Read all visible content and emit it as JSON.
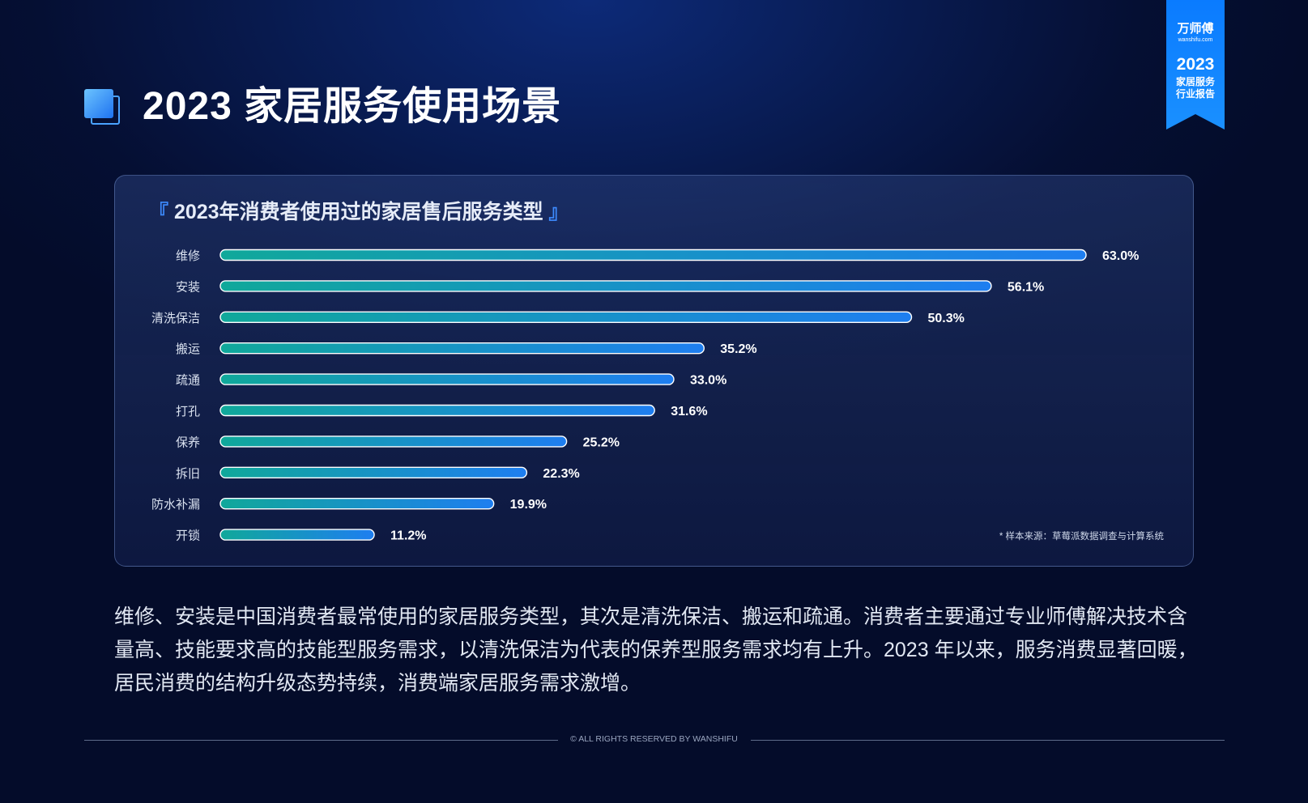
{
  "page": {
    "title": "2023 家居服务使用场景"
  },
  "ribbon": {
    "brand": "万师傅",
    "brand_url": "wanshifu.com",
    "year": "2023",
    "line1": "家居服务",
    "line2": "行业报告"
  },
  "chart_data": {
    "type": "bar",
    "orientation": "horizontal",
    "title": "2023年消费者使用过的家居售后服务类型",
    "title_bracket_open": "『",
    "title_bracket_close": "』",
    "categories": [
      "维修",
      "安装",
      "清洗保洁",
      "搬运",
      "疏通",
      "打孔",
      "保养",
      "拆旧",
      "防水补漏",
      "开锁"
    ],
    "values": [
      63.0,
      56.1,
      50.3,
      35.2,
      33.0,
      31.6,
      25.2,
      22.3,
      19.9,
      11.2
    ],
    "labels": [
      "63.0%",
      "56.1%",
      "50.3%",
      "35.2%",
      "33.0%",
      "31.6%",
      "25.2%",
      "22.3%",
      "19.9%",
      "11.2%"
    ],
    "unit": "%",
    "bar_gradient": [
      "#10a89a",
      "#1e7ef0"
    ],
    "source": "* 样本来源：草莓派数据调查与计算系统"
  },
  "summary": "维修、安装是中国消费者最常使用的家居服务类型，其次是清洗保洁、搬运和疏通。消费者主要通过专业师傅解决技术含量高、技能要求高的技能型服务需求，以清洗保洁为代表的保养型服务需求均有上升。2023 年以来，服务消费显著回暖，居民消费的结构升级态势持续，消费端家居服务需求激增。",
  "footer": "© ALL RIGHTS RESERVED BY WANSHIFU"
}
